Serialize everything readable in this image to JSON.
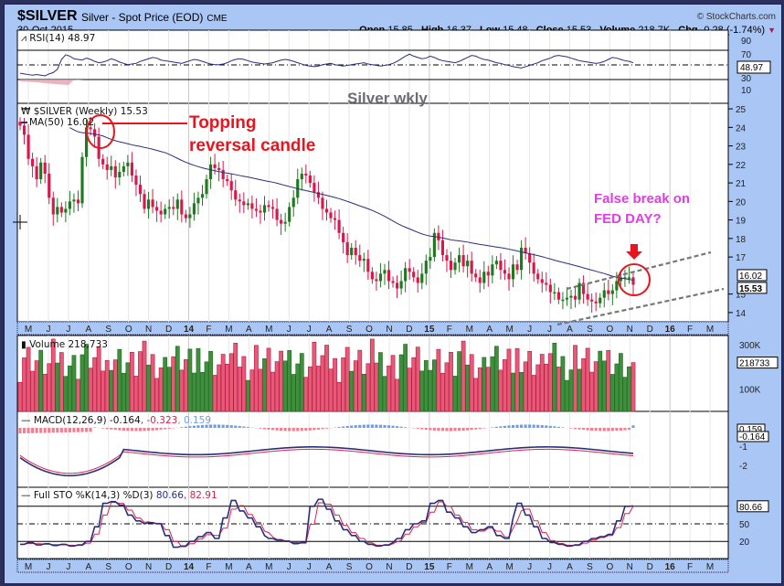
{
  "header": {
    "symbol": "$SILVER",
    "description": "Silver - Spot Price (EOD)",
    "exchange": "CME",
    "date": "30-Oct-2015",
    "copyright": "© StockCharts.com",
    "open_label": "Open",
    "open": "15.85",
    "high_label": "High",
    "high": "16.37",
    "low_label": "Low",
    "low": "15.48",
    "close_label": "Close",
    "close": "15.53",
    "volume_label": "Volume",
    "volume": "218.7K",
    "chg_label": "Chg",
    "chg": "-0.28 (-1.74%)"
  },
  "panels": {
    "rsi": {
      "legend": "RSI(14) 48.97",
      "ticks": [
        "90",
        "70",
        "30",
        "10"
      ],
      "tag": "48.97"
    },
    "price": {
      "legend": "$SILVER (Weekly) 15.53",
      "ma_legend": "MA(50) 16.02",
      "ticks": [
        "25",
        "24",
        "23",
        "22",
        "21",
        "20",
        "19",
        "18",
        "17",
        "15",
        "14"
      ],
      "tag_ma": "16.02",
      "tag_close": "15.53"
    },
    "volume": {
      "legend": "Volume 218,733",
      "ticks": [
        "300K",
        "100K"
      ],
      "tag": "218733"
    },
    "macd": {
      "legend_name": "MACD(12,26,9)",
      "legend_macd": "-0.164",
      "legend_signal": ", -0.323",
      "legend_hist": ", 0.159",
      "ticks": [
        "-1",
        "-2"
      ],
      "tag_hist": "0.159",
      "tag_macd": "-0.164"
    },
    "sto": {
      "legend_name": "Full STO %K(14,3) %D(3)",
      "legend_k": "80.66",
      "legend_d": ", 82.91",
      "ticks": [
        "50",
        "20"
      ],
      "tag": "80.66"
    }
  },
  "x_axis": [
    "M",
    "J",
    "J",
    "A",
    "S",
    "O",
    "N",
    "D",
    "14",
    "F",
    "M",
    "A",
    "M",
    "J",
    "J",
    "A",
    "S",
    "O",
    "N",
    "D",
    "15",
    "F",
    "M",
    "A",
    "M",
    "J",
    "J",
    "A",
    "S",
    "O",
    "N",
    "D",
    "16",
    "F",
    "M"
  ],
  "annotations": {
    "silver_wkly": "Silver wkly",
    "topping_1": "Topping",
    "topping_2": "reversal candle",
    "false_break_1": "False break on",
    "false_break_2": "FED DAY?"
  },
  "colors": {
    "up": "#1e7a1e",
    "down": "#d8184a",
    "ma": "#2a2e7c",
    "sig": "#e0204a",
    "hist_pos": "#6e9ee8",
    "hist_neg": "#f08090",
    "frame": "#a9c6f5",
    "annotation_red": "#e8141e",
    "annotation_magenta": "#e23ce6"
  },
  "chart_data": {
    "type": "candlestick",
    "title": "$SILVER Silver - Spot Price (EOD) CME — Weekly",
    "date": "30-Oct-2015",
    "x_months": [
      "M",
      "J",
      "J",
      "A",
      "S",
      "O",
      "N",
      "D",
      "14",
      "F",
      "M",
      "A",
      "M",
      "J",
      "J",
      "A",
      "S",
      "O",
      "N",
      "D",
      "15",
      "F",
      "M",
      "A",
      "M",
      "J",
      "J",
      "A",
      "S",
      "O",
      "N",
      "D",
      "16",
      "F",
      "M"
    ],
    "price_ylim": [
      13.5,
      25.3
    ],
    "weekly_close_approx": [
      24.1,
      23.6,
      22.3,
      21.9,
      21.2,
      22.1,
      21.5,
      20.2,
      19.3,
      19.7,
      19.4,
      19.6,
      20.0,
      20.1,
      19.9,
      22.4,
      24.0,
      23.9,
      23.5,
      22.3,
      22.0,
      21.7,
      21.9,
      21.3,
      21.6,
      21.9,
      22.1,
      21.4,
      20.9,
      20.4,
      19.6,
      20.1,
      19.7,
      19.5,
      19.3,
      19.6,
      19.7,
      19.6,
      20.1,
      19.3,
      19.1,
      19.3,
      19.9,
      20.2,
      20.4,
      21.2,
      22.0,
      21.8,
      21.7,
      21.2,
      21.1,
      20.6,
      20.1,
      20.0,
      19.8,
      19.9,
      19.6,
      19.5,
      19.4,
      19.8,
      19.7,
      19.6,
      19.0,
      18.8,
      18.9,
      19.7,
      20.2,
      21.2,
      21.5,
      21.4,
      21.0,
      20.5,
      20.2,
      19.6,
      19.4,
      19.1,
      19.0,
      18.3,
      17.8,
      17.1,
      17.5,
      17.1,
      16.8,
      16.9,
      16.2,
      15.8,
      15.7,
      16.1,
      16.3,
      15.7,
      15.6,
      15.3,
      15.7,
      16.4,
      16.2,
      15.9,
      15.6,
      16.1,
      16.8,
      17.0,
      18.3,
      17.9,
      17.1,
      16.8,
      16.3,
      16.7,
      17.1,
      16.5,
      16.8,
      16.1,
      15.9,
      15.6,
      16.2,
      16.0,
      16.6,
      16.8,
      16.3,
      16.1,
      15.8,
      16.6,
      16.3,
      17.5,
      17.2,
      16.7,
      16.1,
      15.8,
      15.6,
      15.5,
      15.1,
      15.1,
      14.7,
      14.7,
      14.8,
      14.9,
      14.7,
      15.6,
      15.0,
      14.7,
      14.6,
      14.5,
      14.8,
      15.2,
      15.0,
      15.2,
      15.7,
      15.9,
      15.9,
      15.9,
      15.5
    ],
    "ma50_start": 25.2,
    "ma50_end": 16.02,
    "rsi_last": 48.97,
    "rsi_levels": [
      70,
      50,
      30
    ],
    "volume_last": 218733,
    "macd": {
      "macd": -0.164,
      "signal": -0.323,
      "histogram": 0.159
    },
    "stochastic": {
      "k": 80.66,
      "d": 82.91,
      "levels": [
        80,
        50,
        20
      ]
    },
    "trend_channel": "rising dashed channel Jul-2015 to Oct-2015",
    "annotations": [
      "Topping reversal candle (Aug 2013)",
      "Silver wkly",
      "False break on FED DAY? (Oct 2015)"
    ]
  }
}
